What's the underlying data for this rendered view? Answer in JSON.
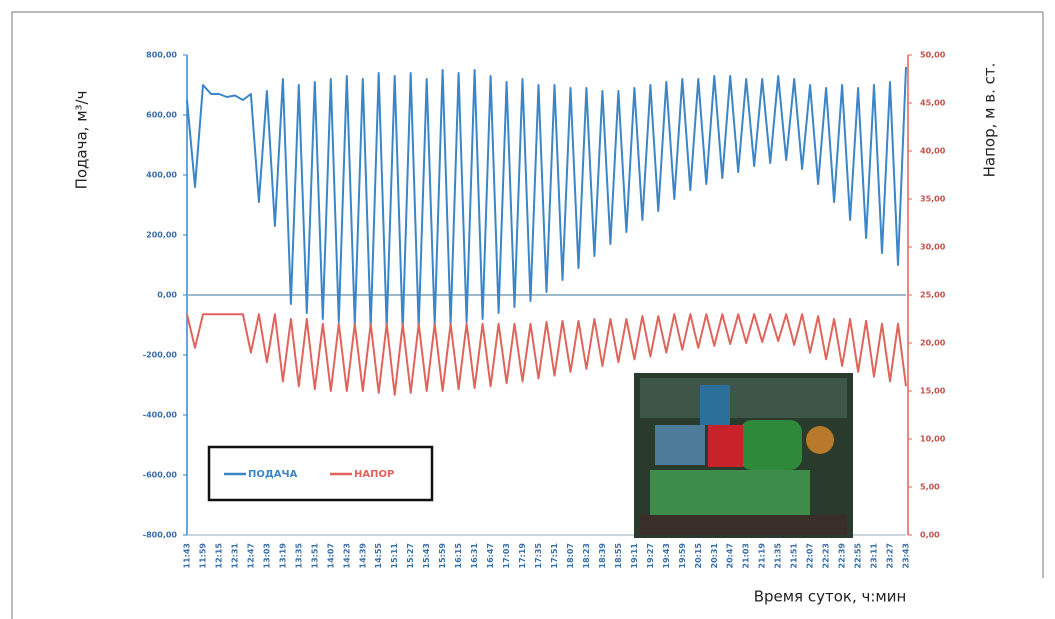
{
  "chart_data": {
    "type": "line",
    "x_label": "Время суток, ч:мин",
    "y_label": "Подача, м³/ч",
    "y2_label": "Напор, м в. ст.",
    "categories": [
      "11:43",
      null,
      "11:59",
      null,
      "12:15",
      null,
      "12:31",
      null,
      "12:47",
      null,
      "13:03",
      null,
      "13:19",
      null,
      "13:35",
      null,
      "13:51",
      null,
      "14:07",
      null,
      "14:23",
      null,
      "14:39",
      null,
      "14:55",
      null,
      "15:11",
      null,
      "15:27",
      null,
      "15:43",
      null,
      "15:59",
      null,
      "16:15",
      null,
      "16:31",
      null,
      "16:47",
      null,
      "17:03",
      null,
      "17:19",
      null,
      "17:35",
      null,
      "17:51",
      null,
      "18:07",
      null,
      "18:23",
      null,
      "18:39",
      null,
      "18:55",
      null,
      "19:11",
      null,
      "19:27",
      null,
      "19:43",
      null,
      "19:59",
      null,
      "20:15",
      null,
      "20:31",
      null,
      "20:47",
      null,
      "21:03",
      null,
      "21:19",
      null,
      "21:35",
      null,
      "21:51",
      null,
      "22:07",
      null,
      "22:23",
      null,
      "22:39",
      null,
      "22:55",
      null,
      "23:11",
      null,
      "23:27",
      null,
      "23:43"
    ],
    "series": [
      {
        "name": "ПОДАЧА",
        "color": "#3a86c8",
        "values": [
          650,
          360,
          700,
          670,
          670,
          660,
          665,
          650,
          670,
          310,
          680,
          230,
          720,
          -30,
          700,
          -60,
          710,
          -80,
          720,
          -90,
          730,
          -100,
          720,
          -110,
          740,
          -110,
          730,
          -120,
          740,
          -110,
          720,
          -100,
          750,
          -100,
          740,
          -90,
          750,
          -80,
          730,
          -60,
          710,
          -40,
          720,
          -20,
          700,
          10,
          700,
          50,
          690,
          90,
          690,
          130,
          680,
          170,
          680,
          210,
          690,
          250,
          700,
          280,
          710,
          320,
          720,
          350,
          720,
          370,
          730,
          390,
          730,
          410,
          720,
          430,
          720,
          440,
          730,
          450,
          720,
          420,
          700,
          370,
          690,
          310,
          700,
          250,
          690,
          190,
          700,
          140,
          710,
          100,
          760
        ]
      },
      {
        "name": "НАПОР",
        "color": "#e0645c",
        "axis": "y2",
        "values": [
          23,
          19.5,
          23,
          23,
          23,
          23,
          23,
          23,
          19,
          23,
          18,
          23,
          16,
          22.5,
          15.5,
          22.5,
          15.2,
          22,
          15,
          22,
          15,
          22,
          15,
          22,
          14.8,
          22,
          14.6,
          22,
          14.8,
          22,
          15,
          22,
          15,
          22,
          15.2,
          22,
          15.3,
          22,
          15.5,
          22,
          15.8,
          22,
          16,
          22,
          16.3,
          22.2,
          16.6,
          22.3,
          17,
          22.3,
          17.3,
          22.5,
          17.6,
          22.5,
          18,
          22.5,
          18.3,
          22.8,
          18.6,
          22.8,
          19,
          23,
          19.3,
          23,
          19.5,
          23,
          19.7,
          23,
          19.9,
          23,
          20,
          23,
          20.1,
          23,
          20.2,
          23,
          19.8,
          23,
          19,
          22.8,
          18.3,
          22.5,
          17.6,
          22.5,
          17,
          22.3,
          16.5,
          22,
          16,
          22,
          15.5
        ]
      }
    ],
    "ylim": [
      -800,
      800
    ],
    "yticks": [
      {
        "value": -800,
        "label": "-800,00"
      },
      {
        "value": -600,
        "label": "-600,00"
      },
      {
        "value": -400,
        "label": "-400,00"
      },
      {
        "value": -200,
        "label": "-200,00"
      },
      {
        "value": 0,
        "label": "0,00"
      },
      {
        "value": 200,
        "label": "200,00"
      },
      {
        "value": 400,
        "label": "400,00"
      },
      {
        "value": 600,
        "label": "600,00"
      },
      {
        "value": 800,
        "label": "800,00"
      }
    ],
    "y2lim": [
      0,
      50
    ],
    "y2ticks": [
      {
        "value": 0,
        "label": "0,00"
      },
      {
        "value": 5,
        "label": "5,00"
      },
      {
        "value": 10,
        "label": "10,00"
      },
      {
        "value": 15,
        "label": "15,00"
      },
      {
        "value": 20,
        "label": "20,00"
      },
      {
        "value": 25,
        "label": "25,00"
      },
      {
        "value": 30,
        "label": "30,00"
      },
      {
        "value": 35,
        "label": "35,00"
      },
      {
        "value": 40,
        "label": "40,00"
      },
      {
        "value": 45,
        "label": "45,00"
      },
      {
        "value": 50,
        "label": "50,00"
      }
    ],
    "grid": false
  }
}
